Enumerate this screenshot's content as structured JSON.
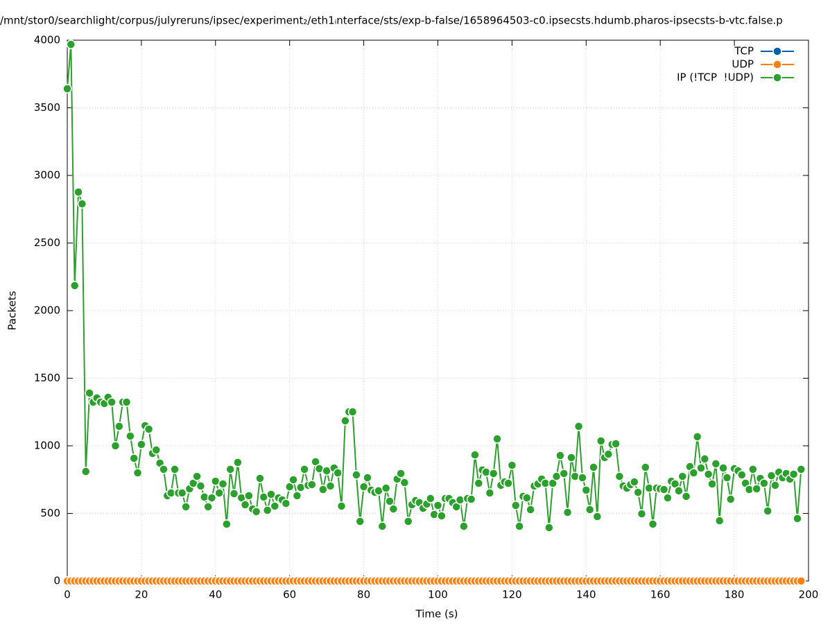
{
  "chart_data": {
    "type": "line",
    "title": "/mnt/stor0/searchlight/corpus/julyreruns/ipsec/experiment₂/eth1ᵢnterface/sts/exp-b-false/1658964503-c0.ipsecsts.hdumb.pharos-ipsecsts-b-vtc.false.p",
    "x_label": "Time (s)",
    "y_label": "Packets",
    "x": [
      0,
      1,
      2,
      3,
      4,
      5,
      6,
      7,
      8,
      9,
      10,
      11,
      12,
      13,
      14,
      15,
      16,
      17,
      18,
      19,
      20,
      21,
      22,
      23,
      24,
      25,
      26,
      27,
      28,
      29,
      30,
      31,
      32,
      33,
      34,
      35,
      36,
      37,
      38,
      39,
      40,
      41,
      42,
      43,
      44,
      45,
      46,
      47,
      48,
      49,
      50,
      51,
      52,
      53,
      54,
      55,
      56,
      57,
      58,
      59,
      60,
      61,
      62,
      63,
      64,
      65,
      66,
      67,
      68,
      69,
      70,
      71,
      72,
      73,
      74,
      75,
      76,
      77,
      78,
      79,
      80,
      81,
      82,
      83,
      84,
      85,
      86,
      87,
      88,
      89,
      90,
      91,
      92,
      93,
      94,
      95,
      96,
      97,
      98,
      99,
      100,
      101,
      102,
      103,
      104,
      105,
      106,
      107,
      108,
      109,
      110,
      111,
      112,
      113,
      114,
      115,
      116,
      117,
      118,
      119,
      120,
      121,
      122,
      123,
      124,
      125,
      126,
      127,
      128,
      129,
      130,
      131,
      132,
      133,
      134,
      135,
      136,
      137,
      138,
      139,
      140,
      141,
      142,
      143,
      144,
      145,
      146,
      147,
      148,
      149,
      150,
      151,
      152,
      153,
      154,
      155,
      156,
      157,
      158,
      159,
      160,
      161,
      162,
      163,
      164,
      165,
      166,
      167,
      168,
      169,
      170,
      171,
      172,
      173,
      174,
      175,
      176,
      177,
      178,
      179,
      180,
      181,
      182,
      183,
      184,
      185,
      186,
      187,
      188,
      189,
      190,
      191,
      192,
      193,
      194,
      195,
      196,
      197,
      198
    ],
    "series": [
      {
        "name": "TCP",
        "color": "#0060ad",
        "values": [
          0,
          0,
          0,
          0,
          0,
          0,
          0,
          0,
          0,
          0,
          0,
          0,
          0,
          0,
          0,
          0,
          0,
          0,
          0,
          0,
          0,
          0,
          0,
          0,
          0,
          0,
          0,
          0,
          0,
          0,
          0,
          0,
          0,
          0,
          0,
          0,
          0,
          0,
          0,
          0,
          0,
          0,
          0,
          0,
          0,
          0,
          0,
          0,
          0,
          0,
          0,
          0,
          0,
          0,
          0,
          0,
          0,
          0,
          0,
          0,
          0,
          0,
          0,
          0,
          0,
          0,
          0,
          0,
          0,
          0,
          0,
          0,
          0,
          0,
          0,
          0,
          0,
          0,
          0,
          0,
          0,
          0,
          0,
          0,
          0,
          0,
          0,
          0,
          0,
          0,
          0,
          0,
          0,
          0,
          0,
          0,
          0,
          0,
          0,
          0,
          0,
          0,
          0,
          0,
          0,
          0,
          0,
          0,
          0,
          0,
          0,
          0,
          0,
          0,
          0,
          0,
          0,
          0,
          0,
          0,
          0,
          0,
          0,
          0,
          0,
          0,
          0,
          0,
          0,
          0,
          0,
          0,
          0,
          0,
          0,
          0,
          0,
          0,
          0,
          0,
          0,
          0,
          0,
          0,
          0,
          0,
          0,
          0,
          0,
          0,
          0,
          0,
          0,
          0,
          0,
          0,
          0,
          0,
          0,
          0,
          0,
          0,
          0,
          0,
          0,
          0,
          0,
          0,
          0,
          0,
          0,
          0,
          0,
          0,
          0,
          0,
          0,
          0,
          0,
          0,
          0,
          0,
          0,
          0,
          0,
          0,
          0,
          0,
          0,
          0,
          0,
          0,
          0,
          0,
          0,
          0,
          0,
          0,
          0
        ]
      },
      {
        "name": "UDP",
        "color": "#ff7f0e",
        "values": [
          0,
          0,
          0,
          0,
          0,
          0,
          0,
          0,
          0,
          0,
          0,
          0,
          0,
          0,
          0,
          0,
          0,
          0,
          0,
          0,
          0,
          0,
          0,
          0,
          0,
          0,
          0,
          0,
          0,
          0,
          0,
          0,
          0,
          0,
          0,
          0,
          0,
          0,
          0,
          0,
          0,
          0,
          0,
          0,
          0,
          0,
          0,
          0,
          0,
          0,
          0,
          0,
          0,
          0,
          0,
          0,
          0,
          0,
          0,
          0,
          0,
          0,
          0,
          0,
          0,
          0,
          0,
          0,
          0,
          0,
          0,
          0,
          0,
          0,
          0,
          0,
          0,
          0,
          0,
          0,
          0,
          0,
          0,
          0,
          0,
          0,
          0,
          0,
          0,
          0,
          0,
          0,
          0,
          0,
          0,
          0,
          0,
          0,
          0,
          0,
          0,
          0,
          0,
          0,
          0,
          0,
          0,
          0,
          0,
          0,
          0,
          0,
          0,
          0,
          0,
          0,
          0,
          0,
          0,
          0,
          0,
          0,
          0,
          0,
          0,
          0,
          0,
          0,
          0,
          0,
          0,
          0,
          0,
          0,
          0,
          0,
          0,
          0,
          0,
          0,
          0,
          0,
          0,
          0,
          0,
          0,
          0,
          0,
          0,
          0,
          0,
          0,
          0,
          0,
          0,
          0,
          0,
          0,
          0,
          0,
          0,
          0,
          0,
          0,
          0,
          0,
          0,
          0,
          0,
          0,
          0,
          0,
          0,
          0,
          0,
          0,
          0,
          0,
          0,
          0,
          0,
          0,
          0,
          0,
          0,
          0,
          0,
          0,
          0,
          0,
          0,
          0,
          0,
          0,
          0,
          0,
          0,
          0,
          0
        ]
      },
      {
        "name": "IP (!TCP  !UDP)",
        "color": "#2ca02c",
        "values": [
          3641,
          3969,
          2185,
          2877,
          2790,
          810,
          1390,
          1323,
          1354,
          1323,
          1313,
          1359,
          1323,
          1000,
          1144,
          1323,
          1323,
          1072,
          908,
          800,
          1010,
          1149,
          1123,
          944,
          969,
          872,
          826,
          631,
          651,
          826,
          651,
          651,
          549,
          682,
          723,
          774,
          703,
          621,
          549,
          615,
          738,
          651,
          718,
          421,
          826,
          646,
          877,
          615,
          564,
          631,
          533,
          513,
          759,
          621,
          523,
          641,
          554,
          615,
          600,
          574,
          697,
          749,
          631,
          692,
          826,
          708,
          713,
          882,
          831,
          677,
          815,
          703,
          836,
          800,
          554,
          1185,
          1251,
          1251,
          785,
          441,
          697,
          764,
          672,
          656,
          667,
          405,
          687,
          590,
          533,
          754,
          795,
          728,
          441,
          564,
          595,
          580,
          538,
          569,
          610,
          492,
          559,
          482,
          610,
          610,
          580,
          549,
          600,
          405,
          610,
          605,
          933,
          723,
          821,
          805,
          651,
          795,
          1051,
          708,
          733,
          723,
          856,
          559,
          405,
          626,
          615,
          528,
          703,
          718,
          754,
          723,
          395,
          723,
          774,
          928,
          795,
          508,
          913,
          774,
          1144,
          764,
          672,
          528,
          841,
          477,
          1036,
          913,
          938,
          1010,
          1015,
          774,
          703,
          687,
          713,
          733,
          656,
          497,
          841,
          687,
          421,
          687,
          682,
          677,
          615,
          738,
          718,
          667,
          774,
          626,
          846,
          800,
          1067,
          836,
          903,
          790,
          718,
          867,
          446,
          836,
          764,
          605,
          831,
          815,
          785,
          723,
          677,
          826,
          682,
          759,
          723,
          518,
          779,
          708,
          805,
          764,
          795,
          754,
          790,
          462,
          826
        ]
      }
    ],
    "xlim": [
      0,
      200
    ],
    "ylim": [
      0,
      4000
    ],
    "xticks": [
      0,
      20,
      40,
      60,
      80,
      100,
      120,
      140,
      160,
      180,
      200
    ],
    "yticks": [
      0,
      500,
      1000,
      1500,
      2000,
      2500,
      3000,
      3500,
      4000
    ],
    "grid": true,
    "legend": "top-right"
  }
}
